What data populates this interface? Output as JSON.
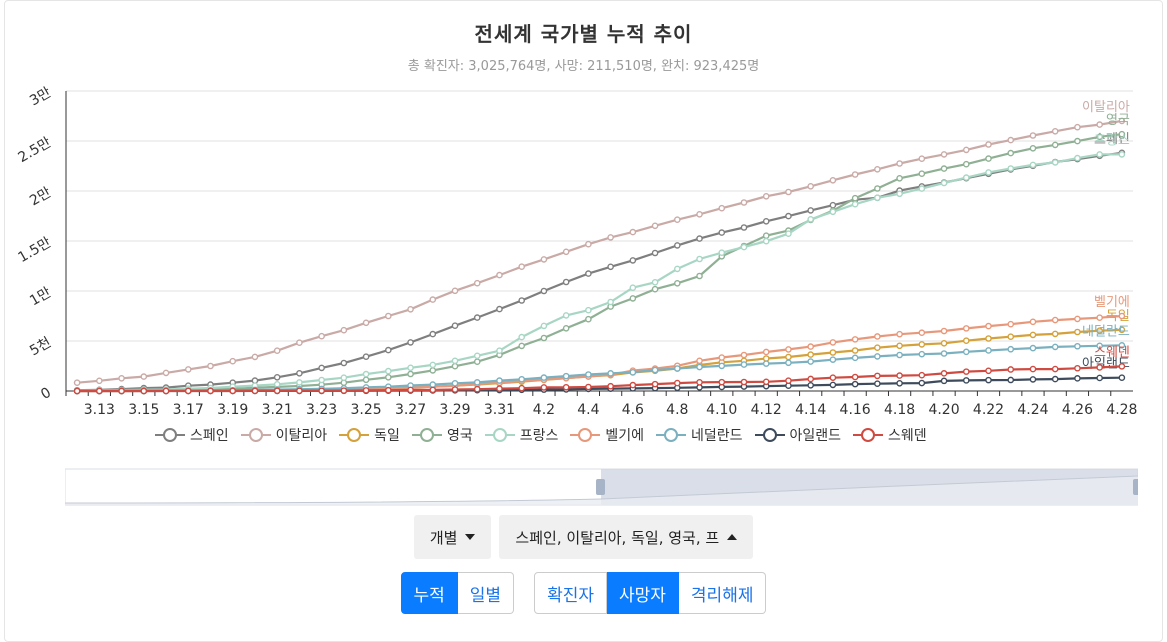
{
  "header": {
    "title": "전세계 국가별 누적 추이",
    "subtitle": "총 확진자: 3,025,764명, 사망: 211,510명, 완치: 923,425명"
  },
  "controls": {
    "mode_select": "개별",
    "country_select": "스페인, 이탈리아, 독일, 영국, 프"
  },
  "buttons": {
    "cumulative": "누적",
    "daily": "일별",
    "confirmed": "확진자",
    "deaths": "사망자",
    "recovered": "격리해제"
  },
  "chart_data": {
    "type": "line",
    "title": "전세계 국가별 누적 추이",
    "ylim": [
      0,
      30000
    ],
    "yticks": [
      {
        "v": 0,
        "label": "0"
      },
      {
        "v": 5000,
        "label": "5천"
      },
      {
        "v": 10000,
        "label": "1만"
      },
      {
        "v": 15000,
        "label": "1.5만"
      },
      {
        "v": 20000,
        "label": "2만"
      },
      {
        "v": 25000,
        "label": "2.5만"
      },
      {
        "v": 30000,
        "label": "3만"
      }
    ],
    "x": [
      "3.12",
      "3.13",
      "3.14",
      "3.15",
      "3.16",
      "3.17",
      "3.18",
      "3.19",
      "3.20",
      "3.21",
      "3.22",
      "3.23",
      "3.24",
      "3.25",
      "3.26",
      "3.27",
      "3.28",
      "3.29",
      "3.30",
      "3.31",
      "4.1",
      "4.2",
      "4.3",
      "4.4",
      "4.5",
      "4.6",
      "4.7",
      "4.8",
      "4.9",
      "4.10",
      "4.11",
      "4.12",
      "4.13",
      "4.14",
      "4.15",
      "4.16",
      "4.17",
      "4.18",
      "4.19",
      "4.20",
      "4.21",
      "4.22",
      "4.23",
      "4.24",
      "4.25",
      "4.26",
      "4.27",
      "4.28"
    ],
    "xtick_labels": [
      "3.13",
      "3.15",
      "3.17",
      "3.19",
      "3.21",
      "3.23",
      "3.25",
      "3.27",
      "3.29",
      "3.31",
      "4.2",
      "4.4",
      "4.6",
      "4.8",
      "4.10",
      "4.12",
      "4.14",
      "4.16",
      "4.18",
      "4.20",
      "4.22",
      "4.24",
      "4.26",
      "4.28"
    ],
    "series": [
      {
        "name": "스페인",
        "color": "#7f7f7f",
        "values": [
          80,
          120,
          190,
          290,
          340,
          530,
          640,
          830,
          1040,
          1370,
          1770,
          2310,
          2800,
          3430,
          4090,
          4860,
          5690,
          6530,
          7340,
          8190,
          9050,
          10000,
          10900,
          11740,
          12420,
          13060,
          13800,
          14560,
          15240,
          15840,
          16350,
          16970,
          17490,
          18060,
          18580,
          19130,
          19320,
          20040,
          20460,
          20850,
          21280,
          21720,
          22160,
          22520,
          22900,
          23190,
          23520,
          23820
        ]
      },
      {
        "name": "이탈리아",
        "color": "#c9aaa6",
        "values": [
          830,
          1020,
          1270,
          1440,
          1810,
          2160,
          2500,
          2980,
          3410,
          4030,
          4830,
          5480,
          6080,
          6820,
          7500,
          8170,
          9140,
          10020,
          10780,
          11590,
          12430,
          13160,
          13920,
          14680,
          15360,
          15890,
          16520,
          17130,
          17670,
          18280,
          18850,
          19470,
          19900,
          20470,
          21070,
          21650,
          22170,
          22750,
          23230,
          23660,
          24110,
          24650,
          25090,
          25550,
          25970,
          26380,
          26640,
          27010
        ]
      },
      {
        "name": "독일",
        "color": "#d4a13a",
        "values": [
          0,
          5,
          8,
          10,
          15,
          20,
          25,
          30,
          40,
          60,
          90,
          120,
          160,
          200,
          260,
          340,
          430,
          540,
          650,
          780,
          930,
          1110,
          1280,
          1460,
          1580,
          1860,
          2020,
          2250,
          2600,
          2870,
          3020,
          3250,
          3400,
          3640,
          3850,
          4050,
          4330,
          4520,
          4660,
          4770,
          5030,
          5250,
          5430,
          5610,
          5710,
          5900,
          6030,
          6120
        ]
      },
      {
        "name": "영국",
        "color": "#8fb094",
        "values": [
          10,
          20,
          40,
          60,
          80,
          120,
          170,
          220,
          330,
          410,
          500,
          630,
          830,
          1120,
          1370,
          1700,
          2060,
          2480,
          2930,
          3610,
          4510,
          5300,
          6270,
          7180,
          8440,
          9260,
          10180,
          10770,
          11500,
          13470,
          14500,
          15530,
          16040,
          17110,
          18030,
          19280,
          20250,
          21270,
          21730,
          22240,
          22680,
          23240,
          23790,
          24270,
          24610,
          24990,
          25420,
          25680
        ]
      },
      {
        "name": "프랑스",
        "color": "#a8d6c4",
        "values": [
          60,
          80,
          90,
          130,
          150,
          230,
          300,
          430,
          540,
          670,
          860,
          1100,
          1330,
          1690,
          1990,
          2320,
          2610,
          3020,
          3520,
          4030,
          5390,
          6510,
          7560,
          8080,
          8900,
          10330,
          10870,
          12210,
          13200,
          13830,
          14390,
          14980,
          15730,
          17170,
          17920,
          18680,
          19320,
          19720,
          20240,
          20800,
          21340,
          21860,
          22250,
          22610,
          22860,
          23290,
          23660,
          23660
        ]
      },
      {
        "name": "벨기에",
        "color": "#e8987a",
        "values": [
          3,
          4,
          4,
          5,
          10,
          14,
          21,
          37,
          67,
          75,
          88,
          122,
          178,
          220,
          289,
          353,
          431,
          513,
          705,
          828,
          1011,
          1143,
          1283,
          1447,
          1632,
          2035,
          2240,
          2523,
          3019,
          3346,
          3600,
          3903,
          4157,
          4440,
          4857,
          5163,
          5453,
          5683,
          5828,
          5998,
          6262,
          6490,
          6679,
          6917,
          7094,
          7207,
          7331,
          7501
        ]
      },
      {
        "name": "네덜란드",
        "color": "#7ab0bf",
        "values": [
          5,
          10,
          12,
          20,
          24,
          43,
          58,
          76,
          106,
          136,
          179,
          213,
          276,
          356,
          434,
          546,
          639,
          771,
          864,
          1039,
          1173,
          1339,
          1487,
          1651,
          1766,
          1867,
          2101,
          2248,
          2396,
          2511,
          2643,
          2737,
          2823,
          2945,
          3134,
          3315,
          3459,
          3601,
          3684,
          3751,
          3916,
          4054,
          4177,
          4289,
          4409,
          4475,
          4518,
          4566
        ]
      },
      {
        "name": "아일랜드",
        "color": "#3d4b5c",
        "values": [
          1,
          1,
          2,
          2,
          2,
          3,
          3,
          4,
          6,
          7,
          9,
          10,
          19,
          22,
          36,
          46,
          54,
          71,
          85,
          98,
          120,
          137,
          158,
          210,
          235,
          263,
          288,
          320,
          365,
          406,
          444,
          486,
          530,
          571,
          610,
          687,
          730,
          769,
          794,
          1014,
          1063,
          1087,
          1102,
          1159,
          1190,
          1265,
          1304,
          1330
        ]
      },
      {
        "name": "스웨덴",
        "color": "#cf4a40",
        "values": [
          1,
          1,
          2,
          3,
          6,
          8,
          10,
          11,
          16,
          20,
          21,
          25,
          36,
          62,
          77,
          105,
          110,
          146,
          180,
          239,
          282,
          358,
          373,
          401,
          477,
          591,
          687,
          793,
          870,
          887,
          899,
          919,
          1033,
          1203,
          1333,
          1400,
          1511,
          1540,
          1580,
          1765,
          1937,
          2021,
          2152,
          2192,
          2194,
          2274,
          2355,
          2462
        ]
      }
    ]
  }
}
